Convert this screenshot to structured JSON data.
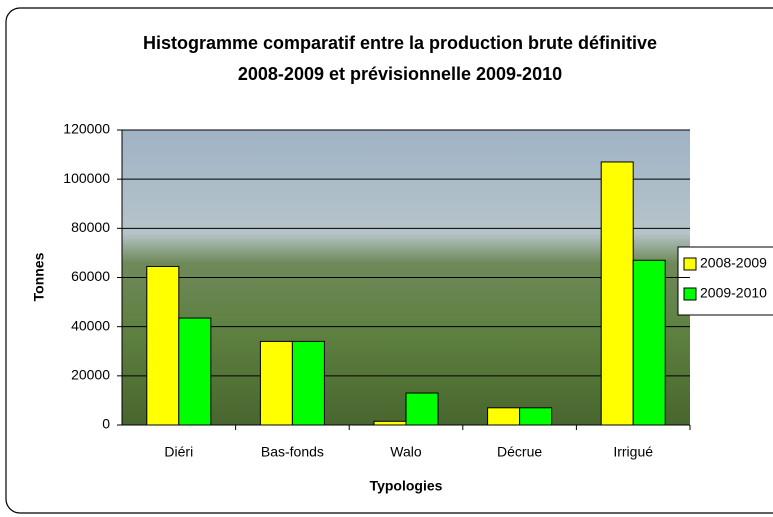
{
  "chart_data": {
    "type": "bar",
    "title": [
      "Histogramme comparatif entre la production brute définitive",
      "2008-2009 et prévisionnelle 2009-2010"
    ],
    "x_label": "Typologies",
    "y_label": "Tonnes",
    "categories": [
      "Diéri",
      "Bas-fonds",
      "Walo",
      "Décrue",
      "Irrigué"
    ],
    "series": [
      {
        "name": "2008-2009",
        "color": "#ffff00",
        "values": [
          64500,
          34000,
          1500,
          7000,
          107000
        ]
      },
      {
        "name": "2009-2010",
        "color": "#00ff00",
        "values": [
          43500,
          34000,
          13000,
          7000,
          67000
        ]
      }
    ],
    "ylim": [
      0,
      120000
    ],
    "yticks": [
      0,
      20000,
      40000,
      60000,
      80000,
      100000,
      120000
    ],
    "grid": true,
    "legend": "right"
  }
}
